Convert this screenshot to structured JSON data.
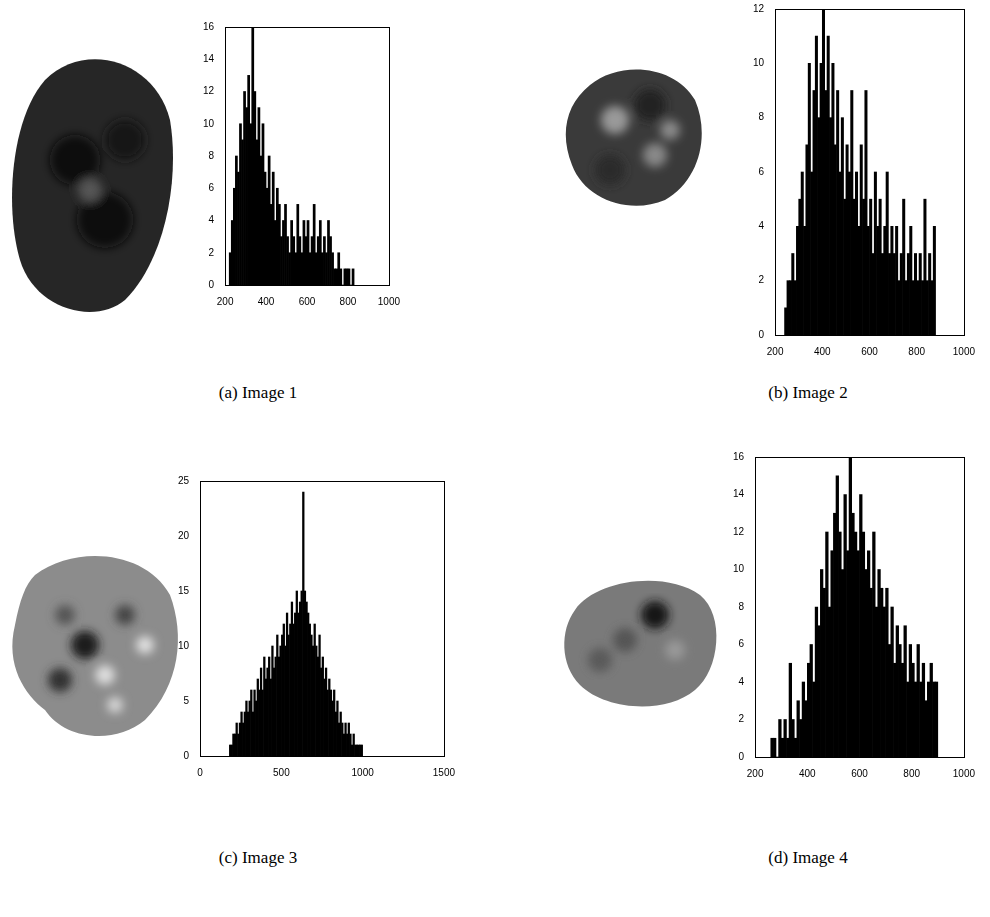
{
  "chart_data": [
    {
      "type": "histogram",
      "title": "(a) Image 1",
      "color": "#000000",
      "grid": false,
      "bins": [
        220,
        230,
        240,
        250,
        260,
        270,
        280,
        290,
        300,
        310,
        320,
        330,
        340,
        350,
        360,
        370,
        380,
        390,
        400,
        410,
        420,
        430,
        440,
        450,
        460,
        470,
        480,
        490,
        500,
        510,
        520,
        530,
        540,
        550,
        560,
        570,
        580,
        590,
        600,
        610,
        620,
        630,
        640,
        650,
        660,
        670,
        680,
        690,
        700,
        710,
        720,
        730,
        740,
        750,
        760,
        770,
        780,
        790,
        800,
        810,
        820,
        830
      ],
      "values": [
        2,
        4,
        6,
        8,
        7,
        10,
        9,
        12,
        11,
        13,
        10,
        16,
        12,
        9,
        11,
        8,
        10,
        7,
        6,
        8,
        5,
        7,
        4,
        6,
        5,
        3,
        4,
        5,
        3,
        2,
        4,
        3,
        2,
        5,
        3,
        2,
        4,
        3,
        4,
        2,
        3,
        5,
        2,
        3,
        4,
        2,
        3,
        2,
        4,
        3,
        2,
        1,
        1,
        2,
        1,
        0,
        1,
        1,
        1,
        0,
        1
      ],
      "xlim": [
        200,
        1000
      ],
      "xticks": [
        200,
        400,
        600,
        800,
        1000
      ],
      "ylim": [
        0,
        16
      ],
      "yticks": [
        0,
        2,
        4,
        6,
        8,
        10,
        12,
        14,
        16
      ]
    },
    {
      "type": "histogram",
      "title": "(b) Image 2",
      "color": "#000000",
      "grid": false,
      "bins": [
        240,
        250,
        260,
        270,
        280,
        290,
        300,
        310,
        320,
        330,
        340,
        350,
        360,
        370,
        380,
        390,
        400,
        410,
        420,
        430,
        440,
        450,
        460,
        470,
        480,
        490,
        500,
        510,
        520,
        530,
        540,
        550,
        560,
        570,
        580,
        590,
        600,
        610,
        620,
        630,
        640,
        650,
        660,
        670,
        680,
        690,
        700,
        710,
        720,
        730,
        740,
        750,
        760,
        770,
        780,
        790,
        800,
        810,
        820,
        830,
        840,
        850,
        860,
        870,
        880
      ],
      "values": [
        1,
        2,
        2,
        3,
        2,
        4,
        5,
        6,
        4,
        7,
        10,
        6,
        9,
        11,
        8,
        10,
        12,
        9,
        11,
        8,
        10,
        7,
        9,
        6,
        8,
        5,
        7,
        6,
        9,
        5,
        6,
        4,
        7,
        5,
        9,
        4,
        5,
        3,
        6,
        4,
        5,
        3,
        4,
        6,
        3,
        4,
        3,
        4,
        2,
        3,
        5,
        2,
        3,
        4,
        2,
        3,
        2,
        3,
        2,
        5,
        2,
        3,
        2,
        4
      ],
      "xlim": [
        200,
        1000
      ],
      "xticks": [
        200,
        400,
        600,
        800,
        1000
      ],
      "ylim": [
        0,
        12
      ],
      "yticks": [
        0,
        2,
        4,
        6,
        8,
        10,
        12
      ]
    },
    {
      "type": "histogram",
      "title": "(c) Image 3",
      "color": "#000000",
      "grid": false,
      "bins": [
        180,
        190,
        200,
        210,
        220,
        230,
        240,
        250,
        260,
        270,
        280,
        290,
        300,
        310,
        320,
        330,
        340,
        350,
        360,
        370,
        380,
        390,
        400,
        410,
        420,
        430,
        440,
        450,
        460,
        470,
        480,
        490,
        500,
        510,
        520,
        530,
        540,
        550,
        560,
        570,
        580,
        590,
        600,
        610,
        620,
        630,
        640,
        650,
        660,
        670,
        680,
        690,
        700,
        710,
        720,
        730,
        740,
        750,
        760,
        770,
        780,
        790,
        800,
        810,
        820,
        830,
        840,
        850,
        860,
        870,
        880,
        890,
        900,
        910,
        920,
        930,
        940,
        950,
        960,
        970,
        980,
        990,
        1000
      ],
      "values": [
        1,
        1,
        2,
        2,
        3,
        2,
        3,
        4,
        3,
        4,
        5,
        4,
        5,
        6,
        4,
        6,
        5,
        7,
        6,
        8,
        6,
        9,
        7,
        8,
        9,
        7,
        10,
        8,
        9,
        11,
        9,
        10,
        11,
        12,
        10,
        13,
        11,
        12,
        14,
        12,
        13,
        15,
        13,
        14,
        15,
        24,
        15,
        14,
        13,
        12,
        11,
        10,
        12,
        10,
        9,
        11,
        8,
        9,
        7,
        8,
        6,
        7,
        6,
        5,
        6,
        4,
        5,
        3,
        4,
        3,
        2,
        3,
        2,
        3,
        2,
        1,
        2,
        1,
        1,
        1,
        1,
        1
      ],
      "xlim": [
        0,
        1500
      ],
      "xticks": [
        0,
        500,
        1000,
        1500
      ],
      "ylim": [
        0,
        25
      ],
      "yticks": [
        0,
        5,
        10,
        15,
        20,
        25
      ]
    },
    {
      "type": "histogram",
      "title": "(d) Image 4",
      "color": "#000000",
      "grid": false,
      "bins": [
        260,
        270,
        280,
        290,
        300,
        310,
        320,
        330,
        340,
        350,
        360,
        370,
        380,
        390,
        400,
        410,
        420,
        430,
        440,
        450,
        460,
        470,
        480,
        490,
        500,
        510,
        520,
        530,
        540,
        550,
        560,
        570,
        580,
        590,
        600,
        610,
        620,
        630,
        640,
        650,
        660,
        670,
        680,
        690,
        700,
        710,
        720,
        730,
        740,
        750,
        760,
        770,
        780,
        790,
        800,
        810,
        820,
        830,
        840,
        850,
        860,
        870,
        880,
        890,
        900
      ],
      "values": [
        1,
        1,
        0,
        2,
        1,
        2,
        1,
        5,
        2,
        1,
        3,
        2,
        4,
        3,
        5,
        6,
        4,
        8,
        7,
        10,
        9,
        12,
        8,
        11,
        13,
        15,
        12,
        10,
        14,
        11,
        16,
        13,
        12,
        11,
        14,
        12,
        10,
        11,
        9,
        12,
        8,
        10,
        9,
        8,
        9,
        6,
        8,
        5,
        7,
        6,
        5,
        7,
        4,
        6,
        5,
        4,
        6,
        4,
        5,
        3,
        4,
        5,
        4,
        4
      ],
      "xlim": [
        200,
        1000
      ],
      "xticks": [
        200,
        400,
        600,
        800,
        1000
      ],
      "ylim": [
        0,
        16
      ],
      "yticks": [
        0,
        2,
        4,
        6,
        8,
        10,
        12,
        14,
        16
      ]
    }
  ]
}
